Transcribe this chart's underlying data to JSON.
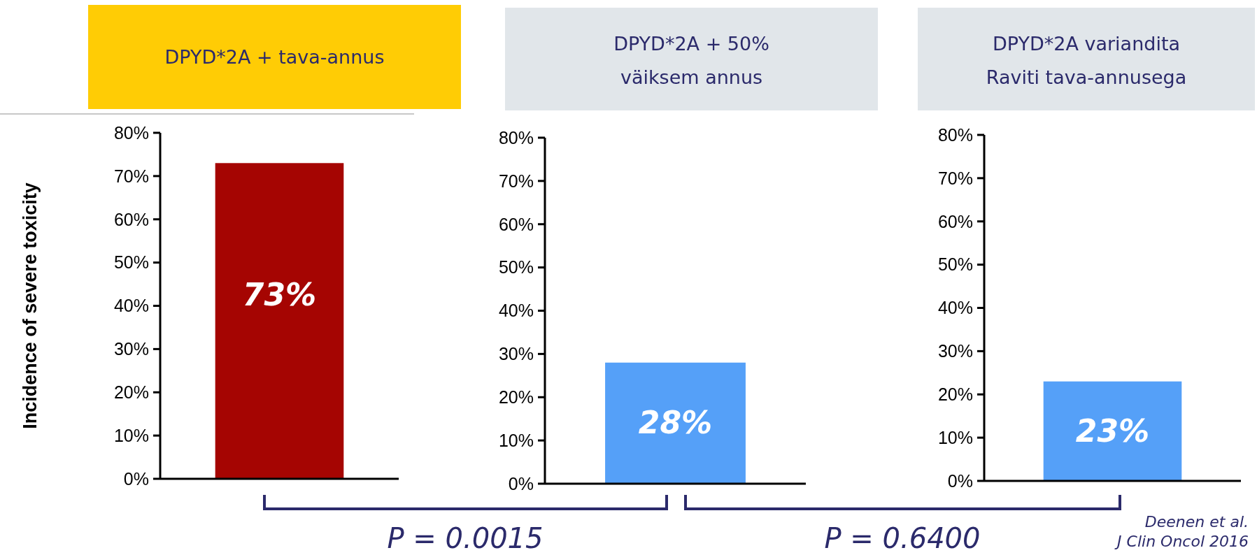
{
  "chart_data": [
    {
      "type": "bar",
      "title": "DPYD*2A + tava-annus",
      "ylabel": "Incidence of severe toxicity",
      "categories": [
        null
      ],
      "values": [
        73
      ],
      "color": "#a50502",
      "value_labels": [
        "73%"
      ],
      "ylim": [
        0,
        80
      ],
      "yticks": [
        {
          "value": 0,
          "label": "0%"
        },
        {
          "value": 10,
          "label": "10%"
        },
        {
          "value": 20,
          "label": "20%"
        },
        {
          "value": 30,
          "label": "30%"
        },
        {
          "value": 40,
          "label": "40%"
        },
        {
          "value": 50,
          "label": "50%"
        },
        {
          "value": 60,
          "label": "60%"
        },
        {
          "value": 70,
          "label": "70%"
        },
        {
          "value": 80,
          "label": "80%"
        }
      ],
      "annotations": [
        "P = 0.0015"
      ]
    },
    {
      "type": "bar",
      "title": "DPYD*2A + 50%\nväiksem annus",
      "categories": [
        null
      ],
      "values": [
        28
      ],
      "color": "#55a0f8",
      "value_labels": [
        "28%"
      ],
      "ylim": [
        0,
        80
      ],
      "yticks": [
        {
          "value": 0,
          "label": "0%"
        },
        {
          "value": 10,
          "label": "10%"
        },
        {
          "value": 20,
          "label": "20%"
        },
        {
          "value": 30,
          "label": "30%"
        },
        {
          "value": 40,
          "label": "40%"
        },
        {
          "value": 50,
          "label": "50%"
        },
        {
          "value": 60,
          "label": "60%"
        },
        {
          "value": 70,
          "label": "70%"
        },
        {
          "value": 80,
          "label": "80%"
        }
      ],
      "annotations": [
        "P = 0.6400"
      ]
    },
    {
      "type": "bar",
      "title": "DPYD*2A variandita\nRaviti tava-annusega",
      "categories": [
        null
      ],
      "values": [
        23
      ],
      "color": "#55a0f8",
      "value_labels": [
        "23%"
      ],
      "ylim": [
        0,
        80
      ],
      "yticks": [
        {
          "value": 0,
          "label": "0%"
        },
        {
          "value": 10,
          "label": "10%"
        },
        {
          "value": 20,
          "label": "20%"
        },
        {
          "value": 30,
          "label": "30%"
        },
        {
          "value": 40,
          "label": "40%"
        },
        {
          "value": 50,
          "label": "50%"
        },
        {
          "value": 60,
          "label": "60%"
        },
        {
          "value": 70,
          "label": "70%"
        },
        {
          "value": 80,
          "label": "80%"
        }
      ],
      "annotations": [
        "Deenen et al.\nJ Clin Oncol 2016"
      ]
    }
  ]
}
